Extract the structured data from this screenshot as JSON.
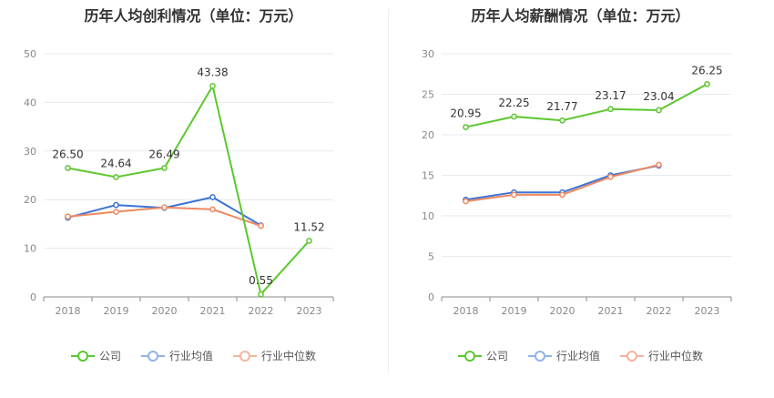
{
  "chart_data": [
    {
      "type": "line",
      "title": "历年人均创利情况（单位：万元）",
      "categories": [
        "2018",
        "2019",
        "2020",
        "2021",
        "2022",
        "2023"
      ],
      "ylim": [
        0,
        50
      ],
      "yticks": [
        0,
        10,
        20,
        30,
        40,
        50
      ],
      "grid": true,
      "legend_position": "bottom",
      "series": [
        {
          "name": "公司",
          "values": [
            26.5,
            24.64,
            26.49,
            43.38,
            0.55,
            11.52
          ],
          "labels": [
            "26.50",
            "24.64",
            "26.49",
            "43.38",
            "0.55",
            "11.52"
          ],
          "color": "#5cc72e"
        },
        {
          "name": "行业均值",
          "values": [
            16.3,
            18.9,
            18.3,
            20.5,
            14.7,
            null
          ],
          "color": "#3b73d6"
        },
        {
          "name": "行业中位数",
          "values": [
            16.5,
            17.5,
            18.4,
            18.0,
            14.6,
            null
          ],
          "color": "#f08860"
        }
      ]
    },
    {
      "type": "line",
      "title": "历年人均薪酬情况（单位：万元）",
      "categories": [
        "2018",
        "2019",
        "2020",
        "2021",
        "2022",
        "2023"
      ],
      "ylim": [
        0,
        30
      ],
      "yticks": [
        0,
        5,
        10,
        15,
        20,
        25,
        30
      ],
      "grid": true,
      "legend_position": "bottom",
      "series": [
        {
          "name": "公司",
          "values": [
            20.95,
            22.25,
            21.77,
            23.17,
            23.04,
            26.25
          ],
          "labels": [
            "20.95",
            "22.25",
            "21.77",
            "23.17",
            "23.04",
            "26.25"
          ],
          "color": "#5cc72e"
        },
        {
          "name": "行业均值",
          "values": [
            12.0,
            12.9,
            12.9,
            15.0,
            16.2,
            null
          ],
          "color": "#3b73d6"
        },
        {
          "name": "行业中位数",
          "values": [
            11.8,
            12.6,
            12.6,
            14.8,
            16.3,
            null
          ],
          "color": "#f08860"
        }
      ]
    }
  ],
  "legend": {
    "items": [
      {
        "label": "公司",
        "color": "#5cc72e"
      },
      {
        "label": "行业均值",
        "color": "#8fb3ea"
      },
      {
        "label": "行业中位数",
        "color": "#f5b49c"
      }
    ]
  }
}
